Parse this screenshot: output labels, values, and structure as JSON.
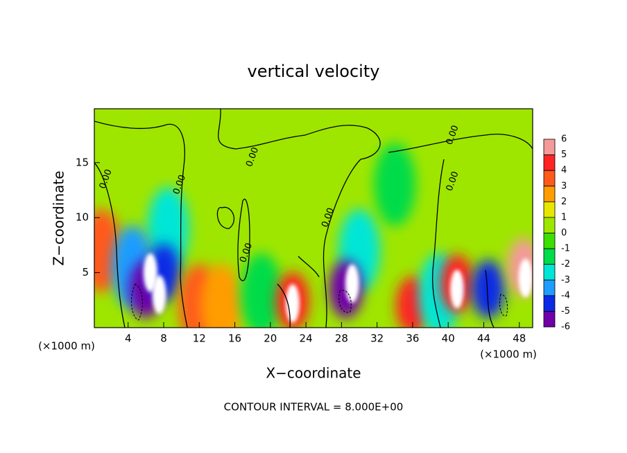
{
  "chart_data": {
    "type": "heatmap",
    "title": "vertical velocity",
    "x_label": "X−coordinate",
    "y_label": "Z−coordinate",
    "x_unit": "(×1000 m)",
    "y_unit": "(×1000 m)",
    "footnote": "CONTOUR INTERVAL = 8.000E+00",
    "xlim": [
      0.2,
      49.5
    ],
    "ylim": [
      0,
      19.9
    ],
    "xticks": [
      4,
      8,
      12,
      16,
      20,
      24,
      28,
      32,
      36,
      40,
      44,
      48
    ],
    "yticks": [
      5,
      10,
      15
    ],
    "background_value": 0.5,
    "colorbar": {
      "ticks": [
        6,
        5,
        4,
        3,
        2,
        1,
        0,
        -1,
        -2,
        -3,
        -4,
        -5,
        -6
      ],
      "colors": [
        "#f49a9a",
        "#ff2424",
        "#ff5a1a",
        "#ff9c00",
        "#e6e600",
        "#9ee600",
        "#3ede00",
        "#00dc4a",
        "#00e6d6",
        "#1e9cff",
        "#0a2ae6",
        "#7000a8"
      ],
      "above_color": "#ffffff"
    },
    "features": [
      {
        "x": 1,
        "z": 7,
        "value": 3.5
      },
      {
        "x": 8.5,
        "z": 9,
        "value": -2.5
      },
      {
        "x": 4.5,
        "z": 5.5,
        "value": -3.5
      },
      {
        "x": 6,
        "z": 3.5,
        "value": -5.5
      },
      {
        "x": 8,
        "z": 5,
        "value": -4.5
      },
      {
        "x": 6.5,
        "z": 5,
        "value": 8
      },
      {
        "x": 7.5,
        "z": 3,
        "value": 8
      },
      {
        "x": 12,
        "z": 2,
        "value": 3.5
      },
      {
        "x": 14.5,
        "z": 2,
        "value": 2.5
      },
      {
        "x": 19,
        "z": 3,
        "value": -1.5
      },
      {
        "x": 22.5,
        "z": 2.4,
        "value": 4.5
      },
      {
        "x": 22.5,
        "z": 2.2,
        "value": 8
      },
      {
        "x": 30,
        "z": 7,
        "value": -2.5
      },
      {
        "x": 28.5,
        "z": 3.5,
        "value": -5.5
      },
      {
        "x": 29.2,
        "z": 4,
        "value": 8
      },
      {
        "x": 34,
        "z": 13,
        "value": -1.5
      },
      {
        "x": 36,
        "z": 2,
        "value": 4.5
      },
      {
        "x": 39,
        "z": 3,
        "value": -2.5
      },
      {
        "x": 41,
        "z": 4,
        "value": 4.5
      },
      {
        "x": 41,
        "z": 3.5,
        "value": 8
      },
      {
        "x": 44.5,
        "z": 3.5,
        "value": -5
      },
      {
        "x": 48.5,
        "z": 5.5,
        "value": 5
      },
      {
        "x": 48.7,
        "z": 4.5,
        "value": 8
      }
    ],
    "contour_labels": [
      {
        "text": "0.00",
        "x": 1.5,
        "z": 13.5
      },
      {
        "text": "0.00",
        "x": 9.8,
        "z": 13
      },
      {
        "text": "0.00",
        "x": 18,
        "z": 15.5
      },
      {
        "text": "0.00",
        "x": 17.3,
        "z": 6.8
      },
      {
        "text": "0.00",
        "x": 26.5,
        "z": 10
      },
      {
        "text": "0.00",
        "x": 40.5,
        "z": 13.3
      },
      {
        "text": "0.00",
        "x": 40.5,
        "z": 17.5
      }
    ]
  }
}
